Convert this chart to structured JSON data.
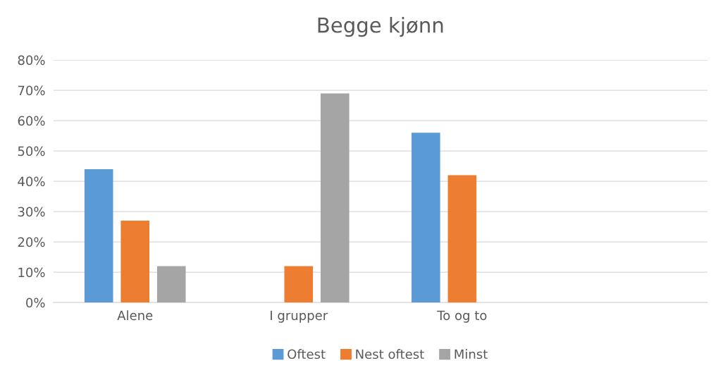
{
  "chart_data": {
    "type": "bar",
    "title": "Begge kjønn",
    "categories": [
      "Alene",
      "I grupper",
      "To og to",
      null
    ],
    "series": [
      {
        "name": "Oftest",
        "color": "#5b9bd5",
        "values": [
          44,
          0,
          56,
          null
        ]
      },
      {
        "name": "Nest oftest",
        "color": "#ed7d31",
        "values": [
          27,
          12,
          42,
          null
        ]
      },
      {
        "name": "Minst",
        "color": "#a5a5a5",
        "values": [
          12,
          69,
          0,
          null
        ]
      }
    ],
    "ylim": [
      0,
      80
    ],
    "yticks": [
      {
        "value": 0,
        "label": "0%"
      },
      {
        "value": 10,
        "label": "10%"
      },
      {
        "value": 20,
        "label": "20%"
      },
      {
        "value": 30,
        "label": "30%"
      },
      {
        "value": 40,
        "label": "40%"
      },
      {
        "value": 50,
        "label": "50%"
      },
      {
        "value": 60,
        "label": "60%"
      },
      {
        "value": 70,
        "label": "70%"
      },
      {
        "value": 80,
        "label": "80%"
      }
    ],
    "grid": "y",
    "legend": "bottom"
  }
}
